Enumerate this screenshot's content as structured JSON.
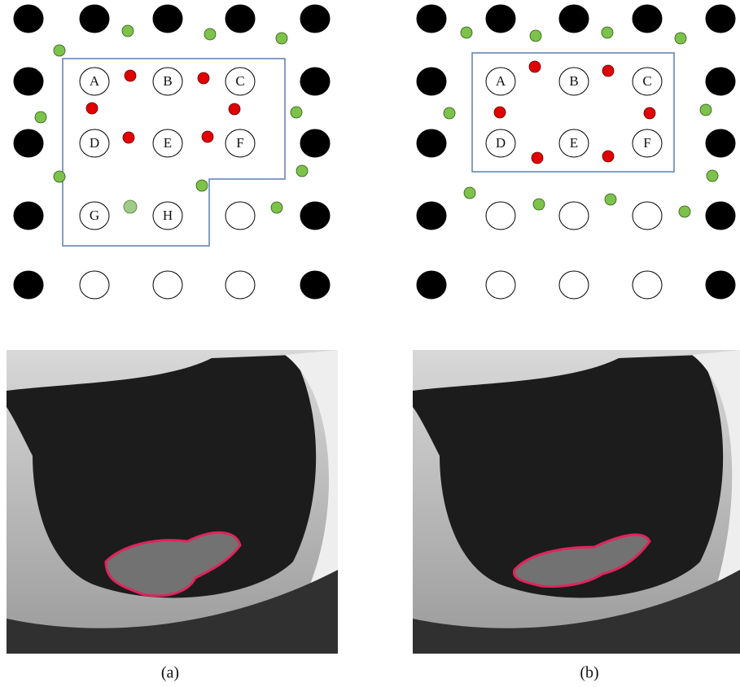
{
  "panels": [
    {
      "labels": [
        "A",
        "B",
        "C",
        "D",
        "E",
        "F",
        "G",
        "H"
      ],
      "caption": "(a)"
    },
    {
      "labels": [
        "A",
        "B",
        "C",
        "D",
        "E",
        "F"
      ],
      "caption": "(b)"
    }
  ]
}
